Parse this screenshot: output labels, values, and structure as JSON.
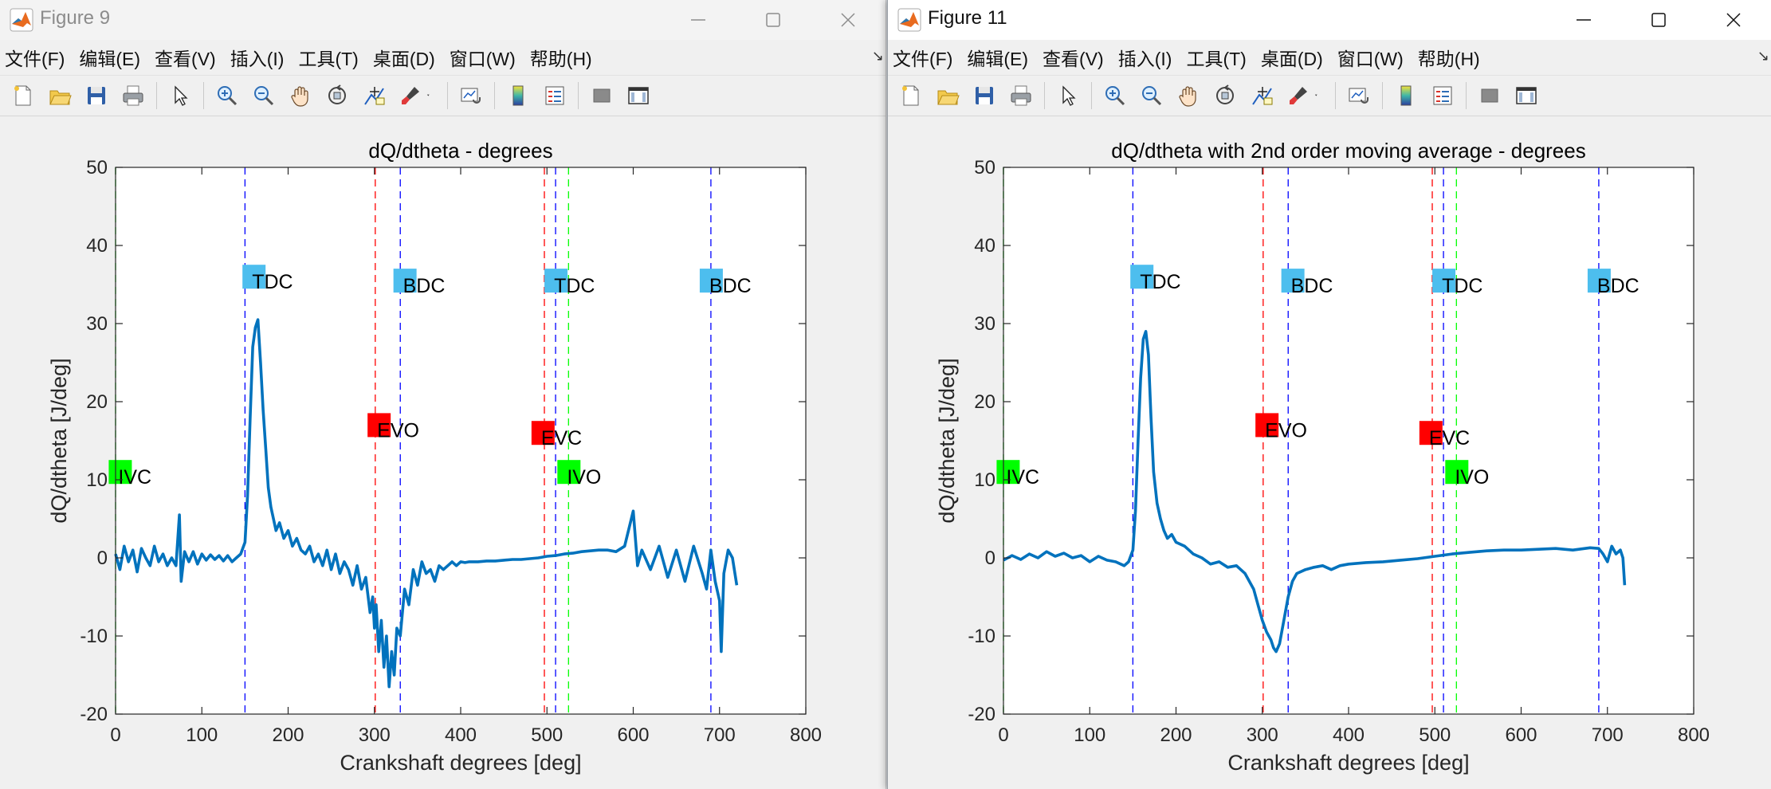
{
  "windows": [
    {
      "id": "left",
      "title": "Figure 9",
      "menu": [
        "文件(F)",
        "编辑(E)",
        "查看(V)",
        "插入(I)",
        "工具(T)",
        "桌面(D)",
        "窗口(W)",
        "帮助(H)"
      ],
      "toolbar_icons": [
        "new-figure-icon",
        "open-file-icon",
        "save-icon",
        "print-icon",
        "pointer-icon",
        "zoom-in-icon",
        "zoom-out-icon",
        "pan-hand-icon",
        "rotate-3d-icon",
        "data-cursor-icon",
        "brush-icon",
        "brush-dropdown-icon",
        "link-plot-icon",
        "insert-colorbar-icon",
        "insert-legend-icon",
        "hide-plot-tools-icon",
        "show-plot-tools-icon"
      ]
    },
    {
      "id": "right",
      "title": "Figure 11",
      "menu": [
        "文件(F)",
        "编辑(E)",
        "查看(V)",
        "插入(I)",
        "工具(T)",
        "桌面(D)",
        "窗口(W)",
        "帮助(H)"
      ],
      "toolbar_icons": [
        "new-figure-icon",
        "open-file-icon",
        "save-icon",
        "print-icon",
        "pointer-icon",
        "zoom-in-icon",
        "zoom-out-icon",
        "pan-hand-icon",
        "rotate-3d-icon",
        "data-cursor-icon",
        "brush-icon",
        "brush-dropdown-icon",
        "link-plot-icon",
        "insert-colorbar-icon",
        "insert-legend-icon",
        "hide-plot-tools-icon",
        "show-plot-tools-icon"
      ]
    }
  ],
  "colors": {
    "line": "#0072bd",
    "ivc_ivo": "#00ff00",
    "evo_evc": "#ff0000",
    "tdc_bdc": "#4dbeee",
    "tdc_bdc_line": "#0000ff"
  },
  "chart_data": [
    {
      "type": "line",
      "title": "dQ/dtheta - degrees",
      "xlabel": "Crankshaft degrees [deg]",
      "ylabel": "dQ/dtheta [J/deg]",
      "xlim": [
        0,
        800
      ],
      "ylim": [
        -20,
        50
      ],
      "xticks": [
        "0",
        "100",
        "200",
        "300",
        "400",
        "500",
        "600",
        "700",
        "800"
      ],
      "yticks": [
        "-20",
        "-10",
        "0",
        "10",
        "20",
        "30",
        "40",
        "50"
      ],
      "grid": false,
      "series": [
        {
          "x": [
            0,
            5,
            10,
            15,
            20,
            25,
            30,
            35,
            40,
            45,
            50,
            55,
            60,
            65,
            70,
            74,
            76,
            80,
            85,
            90,
            95,
            100,
            105,
            110,
            115,
            120,
            125,
            130,
            135,
            140,
            145,
            150,
            153,
            156,
            159,
            162,
            165,
            168,
            171,
            174,
            177,
            180,
            183,
            186,
            190,
            195,
            200,
            205,
            210,
            215,
            220,
            225,
            230,
            235,
            240,
            245,
            250,
            255,
            260,
            265,
            270,
            275,
            280,
            285,
            290,
            295,
            298,
            300,
            302,
            305,
            308,
            311,
            314,
            317,
            320,
            323,
            326,
            330,
            335,
            340,
            345,
            350,
            355,
            360,
            365,
            370,
            375,
            380,
            385,
            390,
            395,
            400,
            405,
            410,
            420,
            430,
            440,
            450,
            460,
            470,
            480,
            490,
            500,
            510,
            520,
            530,
            540,
            550,
            560,
            570,
            580,
            590,
            600,
            605,
            610,
            620,
            630,
            640,
            650,
            660,
            670,
            680,
            685,
            690,
            695,
            700,
            702,
            705,
            710,
            715,
            720
          ],
          "y": [
            0.5,
            -1.5,
            1.5,
            -0.5,
            1,
            -1.8,
            1.2,
            0,
            -1,
            1.5,
            -0.5,
            0.5,
            -1,
            0,
            -1,
            5.5,
            -3,
            0.8,
            -0.5,
            0.8,
            -0.8,
            0.5,
            -0.3,
            0.4,
            -0.2,
            0.3,
            -0.4,
            0.3,
            -0.5,
            0,
            0.5,
            2,
            8,
            18,
            27,
            29.5,
            30.5,
            25,
            19,
            14,
            9,
            6.5,
            5,
            3.5,
            4.5,
            2.5,
            3.5,
            1.5,
            2.5,
            1,
            0.5,
            1.5,
            -0.5,
            0.5,
            -1,
            1,
            -1.5,
            0.5,
            -2,
            -0.5,
            -1.5,
            -3.5,
            -1,
            -4,
            -2.5,
            -7,
            -5,
            -9,
            -6,
            -12,
            -8,
            -14,
            -10,
            -16.5,
            -12,
            -15,
            -9,
            -10,
            -4,
            -6,
            -1.5,
            -3.5,
            -0.5,
            -2,
            -1.5,
            -3,
            -1,
            -1.5,
            -1,
            -0.5,
            -1,
            -0.5,
            -0.6,
            -0.5,
            -0.5,
            -0.4,
            -0.4,
            -0.3,
            -0.2,
            -0.2,
            -0.1,
            0,
            0.2,
            0.3,
            0.5,
            0.6,
            0.8,
            0.9,
            1,
            1,
            0.8,
            1.5,
            6,
            -1,
            1,
            -1.5,
            1.5,
            -2.5,
            1,
            -3,
            1.5,
            -2,
            -4,
            1,
            -3,
            -5.5,
            -12,
            -2,
            1,
            0,
            -3.5
          ]
        }
      ],
      "annotations": [
        {
          "label": "IVC",
          "x": 5,
          "y": 11,
          "type": "ivc"
        },
        {
          "label": "TDC",
          "x": 160,
          "y": 36,
          "type": "tdc"
        },
        {
          "label": "EVO",
          "x": 305,
          "y": 17,
          "type": "evo"
        },
        {
          "label": "BDC",
          "x": 335,
          "y": 35.5,
          "type": "bdc"
        },
        {
          "label": "EVC",
          "x": 495,
          "y": 16,
          "type": "evc"
        },
        {
          "label": "TDC",
          "x": 510,
          "y": 35.5,
          "type": "tdc"
        },
        {
          "label": "IVO",
          "x": 525,
          "y": 11,
          "type": "ivo"
        },
        {
          "label": "BDC",
          "x": 690,
          "y": 35.5,
          "type": "bdc"
        }
      ],
      "vlines": [
        {
          "x": 0,
          "type": "ivc"
        },
        {
          "x": 150,
          "type": "tdc"
        },
        {
          "x": 301,
          "type": "evo"
        },
        {
          "x": 330,
          "type": "bdc"
        },
        {
          "x": 497,
          "type": "evc"
        },
        {
          "x": 510,
          "type": "tdc"
        },
        {
          "x": 525,
          "type": "ivo"
        },
        {
          "x": 690,
          "type": "bdc"
        }
      ]
    },
    {
      "type": "line",
      "title": "dQ/dtheta with 2nd order moving average - degrees",
      "xlabel": "Crankshaft degrees [deg]",
      "ylabel": "dQ/dtheta [J/deg]",
      "xlim": [
        0,
        800
      ],
      "ylim": [
        -20,
        50
      ],
      "xticks": [
        "0",
        "100",
        "200",
        "300",
        "400",
        "500",
        "600",
        "700",
        "800"
      ],
      "yticks": [
        "-20",
        "-10",
        "0",
        "10",
        "20",
        "30",
        "40",
        "50"
      ],
      "grid": false,
      "series": [
        {
          "x": [
            0,
            10,
            20,
            30,
            40,
            50,
            60,
            70,
            80,
            90,
            100,
            110,
            120,
            130,
            140,
            145,
            150,
            153,
            156,
            159,
            162,
            165,
            168,
            171,
            174,
            178,
            182,
            186,
            190,
            195,
            200,
            210,
            220,
            230,
            240,
            250,
            260,
            270,
            280,
            290,
            295,
            300,
            305,
            310,
            313,
            316,
            320,
            325,
            330,
            335,
            340,
            350,
            360,
            370,
            380,
            390,
            400,
            420,
            440,
            460,
            480,
            500,
            520,
            540,
            560,
            580,
            600,
            620,
            640,
            660,
            680,
            690,
            695,
            700,
            705,
            710,
            715,
            718,
            720
          ],
          "y": [
            -0.3,
            0.3,
            -0.2,
            0.5,
            0,
            0.8,
            0.2,
            0.6,
            0,
            0.3,
            -0.5,
            0.2,
            -0.3,
            -0.5,
            -1,
            -0.5,
            1,
            6,
            15,
            23,
            28,
            29,
            26,
            18,
            11,
            7,
            5,
            3.5,
            2.5,
            3,
            2,
            1.5,
            0.5,
            0,
            -0.8,
            -0.5,
            -1.2,
            -1,
            -2,
            -4,
            -6,
            -8,
            -9.5,
            -10.5,
            -11.5,
            -12,
            -11,
            -8,
            -5,
            -3,
            -2,
            -1.5,
            -1.2,
            -1,
            -1.5,
            -1,
            -0.8,
            -0.6,
            -0.5,
            -0.3,
            -0.1,
            0.2,
            0.5,
            0.7,
            0.9,
            1,
            1,
            1.1,
            1.2,
            1,
            1.3,
            1.2,
            0.5,
            -0.5,
            1.5,
            0.5,
            1,
            0,
            -3.5
          ]
        }
      ],
      "annotations": [
        {
          "label": "IVC",
          "x": 5,
          "y": 11,
          "type": "ivc"
        },
        {
          "label": "TDC",
          "x": 160,
          "y": 36,
          "type": "tdc"
        },
        {
          "label": "EVO",
          "x": 305,
          "y": 17,
          "type": "evo"
        },
        {
          "label": "BDC",
          "x": 335,
          "y": 35.5,
          "type": "bdc"
        },
        {
          "label": "EVC",
          "x": 495,
          "y": 16,
          "type": "evc"
        },
        {
          "label": "TDC",
          "x": 510,
          "y": 35.5,
          "type": "tdc"
        },
        {
          "label": "IVO",
          "x": 525,
          "y": 11,
          "type": "ivo"
        },
        {
          "label": "BDC",
          "x": 690,
          "y": 35.5,
          "type": "bdc"
        }
      ],
      "vlines": [
        {
          "x": 0,
          "type": "ivc"
        },
        {
          "x": 150,
          "type": "tdc"
        },
        {
          "x": 301,
          "type": "evo"
        },
        {
          "x": 330,
          "type": "bdc"
        },
        {
          "x": 497,
          "type": "evc"
        },
        {
          "x": 510,
          "type": "tdc"
        },
        {
          "x": 525,
          "type": "ivo"
        },
        {
          "x": 690,
          "type": "bdc"
        }
      ]
    }
  ]
}
